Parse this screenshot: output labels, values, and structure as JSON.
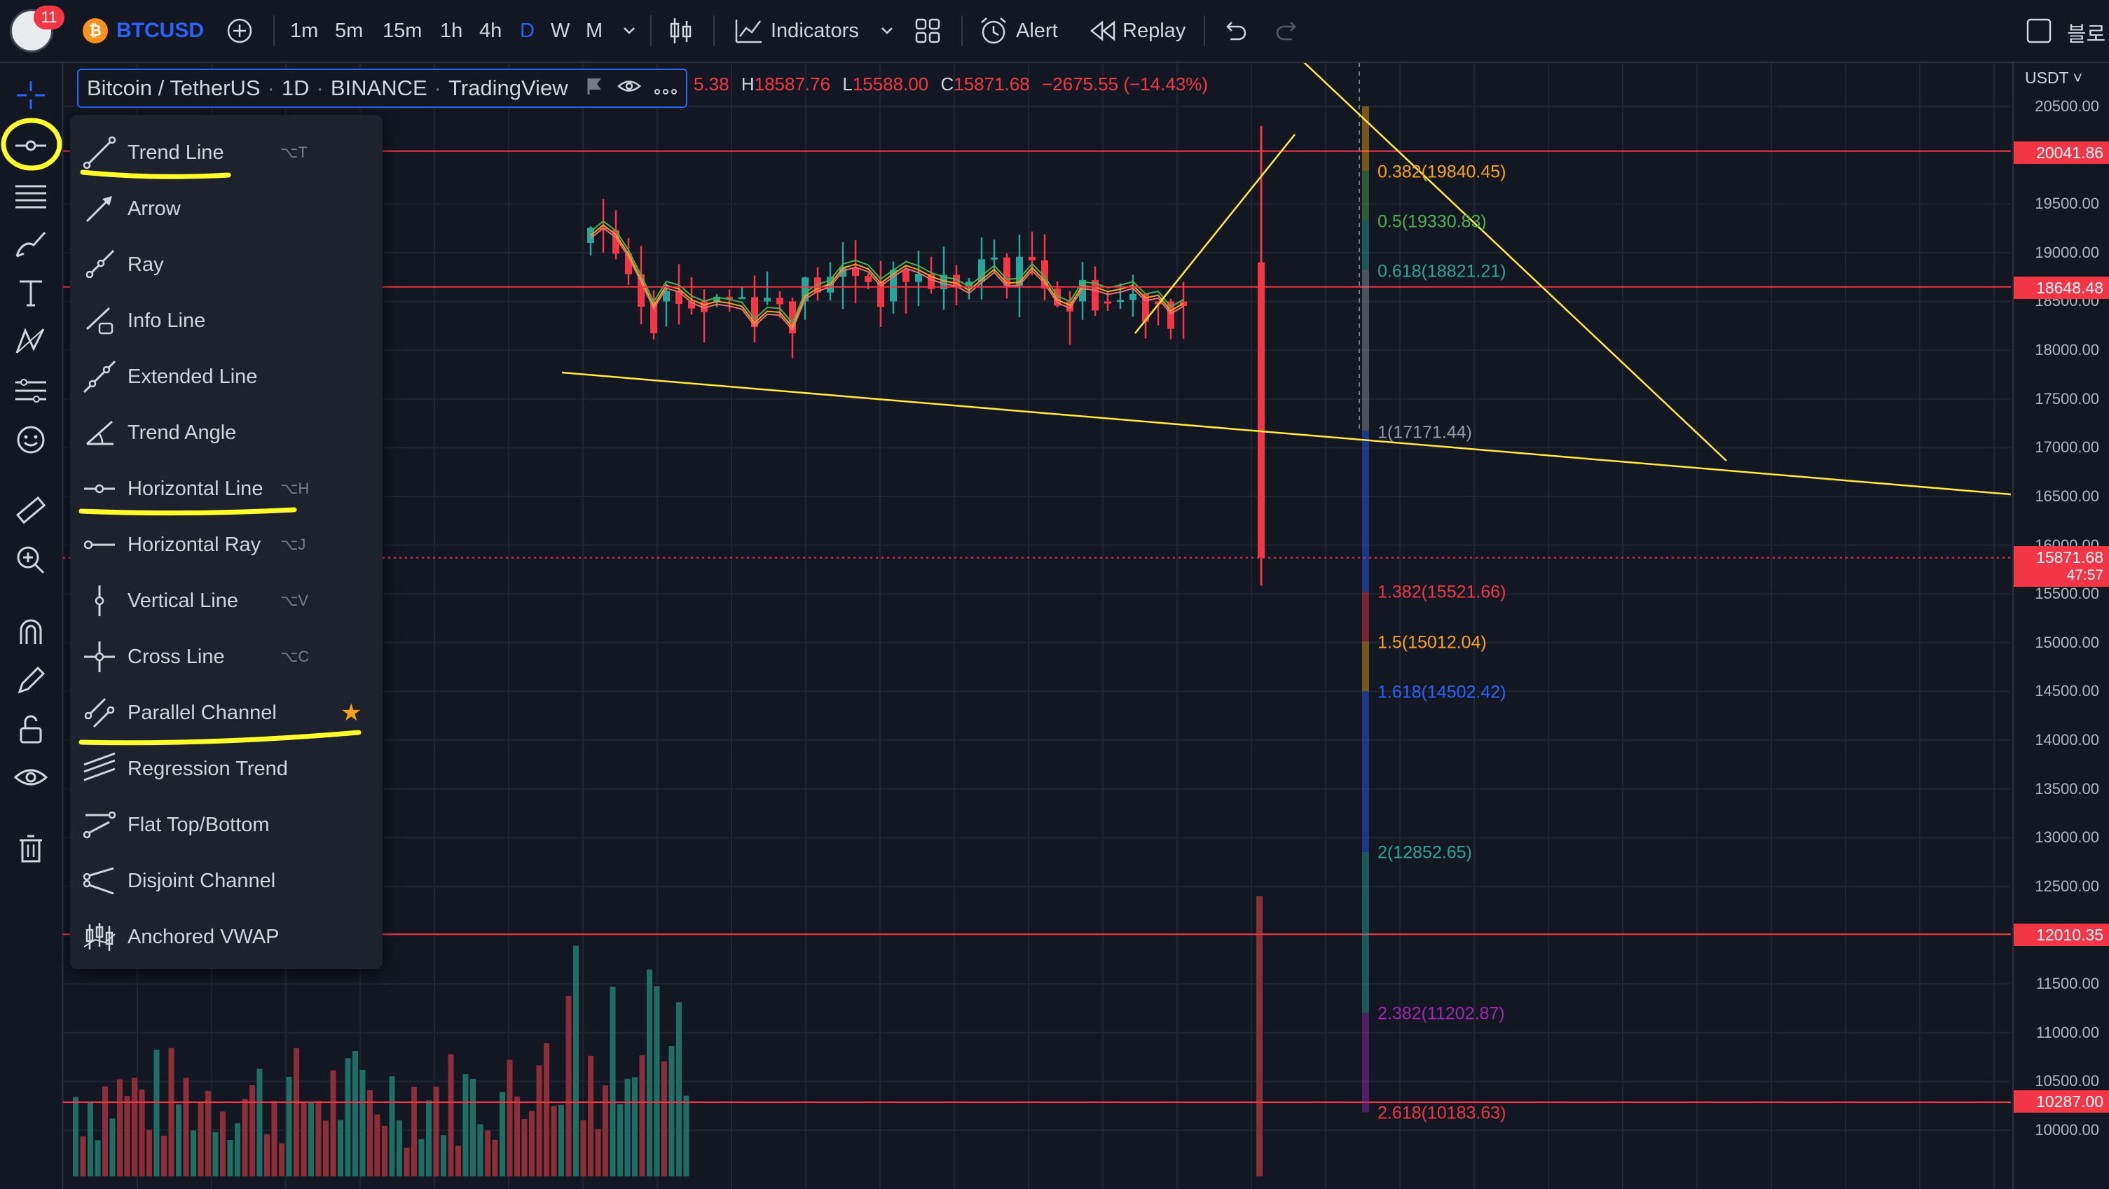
{
  "toolbar": {
    "notification_count": "11",
    "symbol": "BTCUSD",
    "intervals": [
      "1m",
      "5m",
      "15m",
      "1h",
      "4h",
      "D",
      "W",
      "M"
    ],
    "active_interval": "D",
    "indicators_label": "Indicators",
    "alert_label": "Alert",
    "replay_label": "Replay",
    "right_label": "블로"
  },
  "legend": {
    "title": "Bitcoin / TetherUS",
    "interval": "1D",
    "exchange": "BINANCE",
    "source": "TradingView",
    "ohlc_partial": "5.38",
    "h_label": "H",
    "high": "18587.76",
    "l_label": "L",
    "low": "15588.00",
    "c_label": "C",
    "close": "15871.68",
    "change": "−2675.55 (−14.43%)"
  },
  "price_axis": {
    "currency": "USDT",
    "ticks": [
      "20500.00",
      "19500.00",
      "19000.00",
      "18500.00",
      "18000.00",
      "17500.00",
      "17000.00",
      "16500.00",
      "16000.00",
      "15500.00",
      "15000.00",
      "14500.00",
      "14000.00",
      "13500.00",
      "13000.00",
      "12500.00",
      "12000.00",
      "11500.00",
      "11000.00",
      "10500.00",
      "10000.00"
    ],
    "tags": [
      "20041.86",
      "18648.48",
      "12010.35",
      "10287.00"
    ],
    "current_price": "15871.68",
    "countdown": "47:57"
  },
  "fib_levels": [
    {
      "label": "0.382(19840.45)",
      "color": "#f7a21b"
    },
    {
      "label": "0.5(19330.83)",
      "color": "#4caf50"
    },
    {
      "label": "0.618(18821.21)",
      "color": "#26a69a"
    },
    {
      "label": "1(17171.44)",
      "color": "#9598a1"
    },
    {
      "label": "1.382(15521.66)",
      "color": "#f23645"
    },
    {
      "label": "1.5(15012.04)",
      "color": "#f7a21b"
    },
    {
      "label": "1.618(14502.42)",
      "color": "#2962ff"
    },
    {
      "label": "2(12852.65)",
      "color": "#26a69a"
    },
    {
      "label": "2.382(11202.87)",
      "color": "#9c27b0"
    },
    {
      "label": "2.618(10183.63)",
      "color": "#f23645"
    }
  ],
  "drawing_menu": {
    "items": [
      {
        "label": "Trend Line",
        "shortcut": "⌥T",
        "icon": "trend-line-icon"
      },
      {
        "label": "Arrow",
        "shortcut": "",
        "icon": "arrow-icon"
      },
      {
        "label": "Ray",
        "shortcut": "",
        "icon": "ray-icon"
      },
      {
        "label": "Info Line",
        "shortcut": "",
        "icon": "info-line-icon"
      },
      {
        "label": "Extended Line",
        "shortcut": "",
        "icon": "extended-line-icon"
      },
      {
        "label": "Trend Angle",
        "shortcut": "",
        "icon": "trend-angle-icon"
      },
      {
        "label": "Horizontal Line",
        "shortcut": "⌥H",
        "icon": "horizontal-line-icon"
      },
      {
        "label": "Horizontal Ray",
        "shortcut": "⌥J",
        "icon": "horizontal-ray-icon"
      },
      {
        "label": "Vertical Line",
        "shortcut": "⌥V",
        "icon": "vertical-line-icon"
      },
      {
        "label": "Cross Line",
        "shortcut": "⌥C",
        "icon": "cross-line-icon"
      },
      {
        "label": "Parallel Channel",
        "shortcut": "",
        "icon": "parallel-channel-icon",
        "favorite": true
      },
      {
        "label": "Regression Trend",
        "shortcut": "",
        "icon": "regression-trend-icon"
      },
      {
        "label": "Flat Top/Bottom",
        "shortcut": "",
        "icon": "flat-top-bottom-icon"
      },
      {
        "label": "Disjoint Channel",
        "shortcut": "",
        "icon": "disjoint-channel-icon"
      },
      {
        "label": "Anchored VWAP",
        "shortcut": "",
        "icon": "anchored-vwap-icon"
      }
    ]
  },
  "colors": {
    "background": "#131722",
    "panel": "#1e222d",
    "accent": "#2962ff",
    "down": "#f23645",
    "up": "#26a69a",
    "drawing": "#ffeb3b",
    "highlight": "#ffff2a"
  }
}
